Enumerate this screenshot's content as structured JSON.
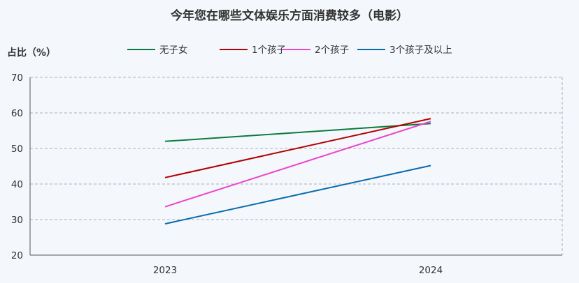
{
  "chart_data": {
    "type": "line",
    "title": "今年您在哪些文体娱乐方面消费较多（电影）",
    "ylabel": "占比（%）",
    "xlabel": "",
    "x": [
      "2023",
      "2024"
    ],
    "ylim": [
      20,
      70
    ],
    "yticks": [
      20,
      30,
      40,
      50,
      60,
      70
    ],
    "grid": true,
    "legend_position": "top",
    "series": [
      {
        "name": "无子女",
        "color": "#0b7a3e",
        "values": [
          52,
          57
        ]
      },
      {
        "name": "1个孩子",
        "color": "#b30000",
        "values": [
          41.8,
          58.4
        ]
      },
      {
        "name": "2个孩子",
        "color": "#ee44cc",
        "values": [
          33.6,
          57.6
        ]
      },
      {
        "name": "3个孩子及以上",
        "color": "#0a6aad",
        "values": [
          28.8,
          45.2
        ]
      }
    ]
  }
}
